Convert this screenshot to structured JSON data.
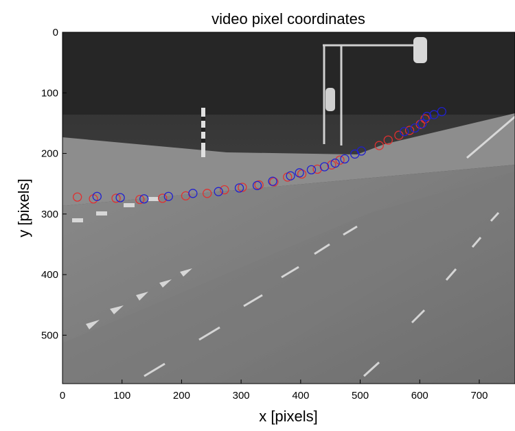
{
  "chart_data": {
    "type": "scatter",
    "title": "video pixel coordinates",
    "xlabel": "x [pixels]",
    "ylabel": "y [pixels]",
    "xlim": [
      0,
      760
    ],
    "ylim": [
      0,
      580
    ],
    "y_reversed": true,
    "x_ticks": [
      0,
      100,
      200,
      300,
      400,
      500,
      600,
      700
    ],
    "y_ticks": [
      0,
      100,
      200,
      300,
      400,
      500
    ],
    "background": "grayscale video frame of a road intersection",
    "series": [
      {
        "color": "#e03030",
        "marker": "circle-open",
        "x": [
          25,
          52,
          90,
          130,
          168,
          207,
          243,
          272,
          302,
          330,
          355,
          378,
          402,
          428,
          452,
          466,
          532,
          547,
          565,
          583,
          601,
          609
        ],
        "y": [
          272,
          275,
          274,
          276,
          274,
          270,
          266,
          260,
          256,
          252,
          247,
          239,
          234,
          226,
          219,
          211,
          187,
          178,
          170,
          162,
          152,
          143
        ]
      },
      {
        "color": "#2020d0",
        "marker": "circle-open",
        "x": [
          58,
          97,
          137,
          178,
          219,
          262,
          297,
          327,
          353,
          383,
          398,
          418,
          440,
          458,
          474,
          491,
          502,
          574,
          592,
          604,
          612,
          624,
          637
        ],
        "y": [
          271,
          273,
          275,
          271,
          266,
          263,
          257,
          253,
          246,
          237,
          232,
          227,
          222,
          216,
          209,
          201,
          196,
          164,
          158,
          151,
          139,
          136,
          131
        ]
      }
    ]
  }
}
